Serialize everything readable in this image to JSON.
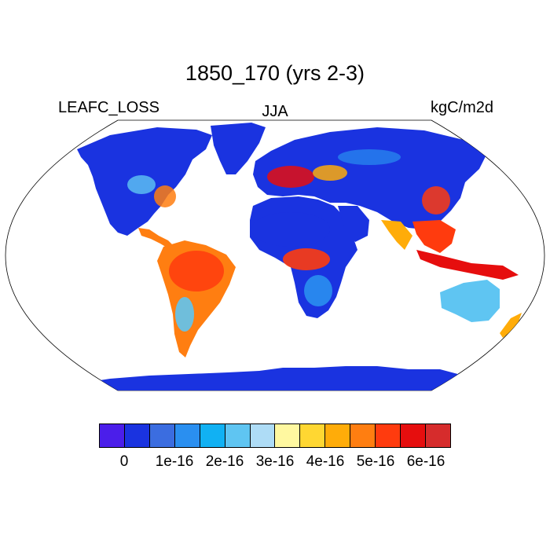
{
  "plot": {
    "title": "1850_170 (yrs 2-3)",
    "variable": "LEAFC_LOSS",
    "season": "JJA",
    "units": "kgC/m2d"
  },
  "colorbar": {
    "colors": [
      "#4b1eea",
      "#1a33e0",
      "#3b6de0",
      "#2a8ff0",
      "#11b1f3",
      "#5fc5f2",
      "#aedcf6",
      "#fff8a0",
      "#ffd732",
      "#ffac09",
      "#ff7e11",
      "#ff3b0e",
      "#e60e0e",
      "#d62c2c"
    ],
    "tick_labels": [
      "0",
      "1e-16",
      "2e-16",
      "3e-16",
      "4e-16",
      "5e-16",
      "6e-16"
    ]
  }
}
